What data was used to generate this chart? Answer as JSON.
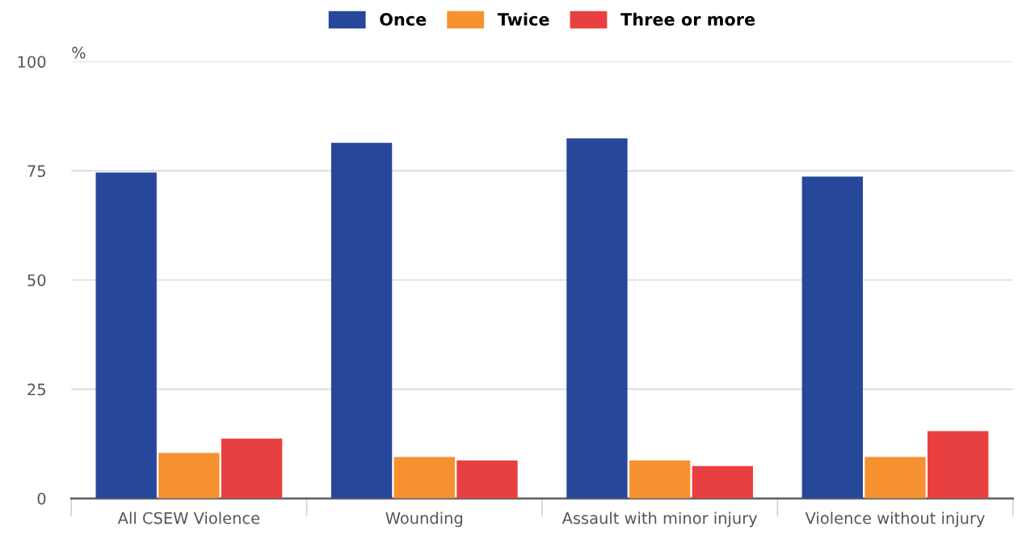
{
  "chart_data": {
    "type": "bar",
    "ylabel": "%",
    "categories": [
      "All CSEW Violence",
      "Wounding",
      "Assault with minor injury",
      "Violence without injury"
    ],
    "series": [
      {
        "name": "Once",
        "color": "#27479a",
        "values": [
          74.6,
          81.4,
          82.4,
          73.7
        ]
      },
      {
        "name": "Twice",
        "color": "#f5922f",
        "values": [
          10.4,
          9.5,
          8.7,
          9.5
        ]
      },
      {
        "name": "Three or more",
        "color": "#e84040",
        "values": [
          13.7,
          8.7,
          7.4,
          15.4
        ]
      }
    ],
    "ylim": [
      0,
      100
    ],
    "yticks": [
      0,
      25,
      50,
      75,
      100
    ],
    "grid": "y",
    "legend": "top"
  }
}
